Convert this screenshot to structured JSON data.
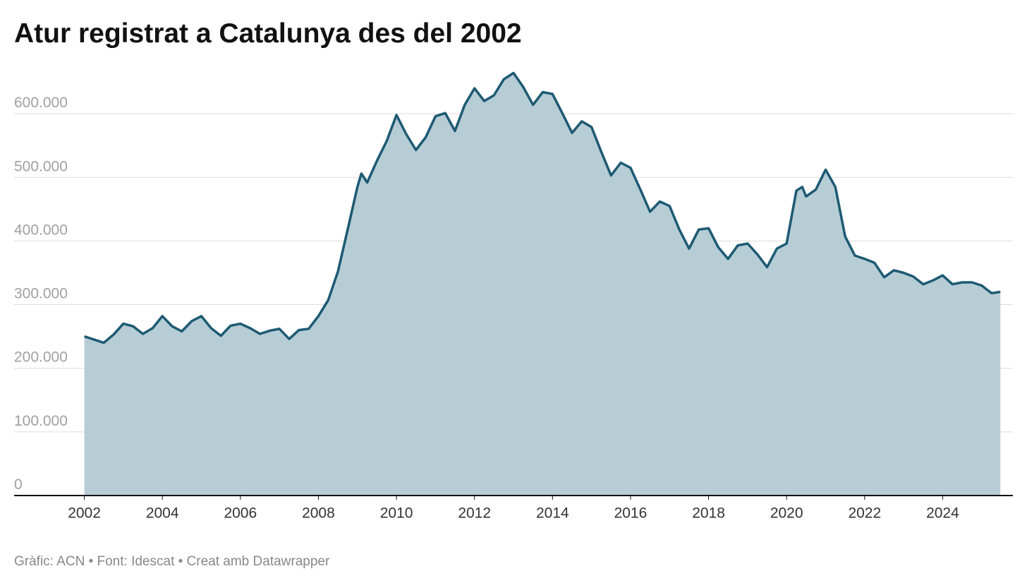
{
  "chart_data": {
    "type": "area",
    "title": "Atur registrat a Catalunya des del 2002",
    "source": "Gràfic: ACN • Font: Idescat • Creat amb Datawrapper",
    "color": "#1d5a73",
    "fill_color": "#b7cdd5",
    "x": [
      2002,
      2002.25,
      2002.5,
      2002.75,
      2003,
      2003.25,
      2003.5,
      2003.75,
      2004,
      2004.25,
      2004.5,
      2004.75,
      2005,
      2005.25,
      2005.5,
      2005.75,
      2006,
      2006.25,
      2006.5,
      2006.75,
      2007,
      2007.25,
      2007.5,
      2007.75,
      2008,
      2008.25,
      2008.5,
      2008.75,
      2009,
      2009.1,
      2009.25,
      2009.5,
      2009.75,
      2010,
      2010.25,
      2010.5,
      2010.75,
      2011,
      2011.25,
      2011.5,
      2011.75,
      2012,
      2012.25,
      2012.5,
      2012.75,
      2013,
      2013.25,
      2013.5,
      2013.75,
      2014,
      2014.25,
      2014.5,
      2014.75,
      2015,
      2015.25,
      2015.5,
      2015.75,
      2016,
      2016.25,
      2016.5,
      2016.75,
      2017,
      2017.25,
      2017.5,
      2017.75,
      2018,
      2018.25,
      2018.5,
      2018.75,
      2019,
      2019.25,
      2019.5,
      2019.75,
      2020,
      2020.25,
      2020.4,
      2020.5,
      2020.75,
      2021,
      2021.25,
      2021.5,
      2021.75,
      2022,
      2022.25,
      2022.5,
      2022.75,
      2023,
      2023.25,
      2023.5,
      2023.75,
      2024,
      2024.25,
      2024.5,
      2024.75,
      2025,
      2025.25,
      2025.48
    ],
    "values": [
      250000,
      245000,
      240000,
      253000,
      270000,
      266000,
      254000,
      263000,
      282000,
      266000,
      258000,
      274000,
      282000,
      263000,
      251000,
      267000,
      270000,
      263000,
      254000,
      259000,
      262000,
      246000,
      260000,
      262000,
      282000,
      307000,
      352000,
      418000,
      485000,
      506000,
      492000,
      526000,
      557000,
      598000,
      568000,
      543000,
      563000,
      596000,
      601000,
      573000,
      614000,
      640000,
      620000,
      629000,
      654000,
      664000,
      642000,
      614000,
      634000,
      631000,
      601000,
      570000,
      588000,
      579000,
      540000,
      503000,
      523000,
      515000,
      481000,
      446000,
      462000,
      455000,
      418000,
      388000,
      418000,
      420000,
      390000,
      372000,
      393000,
      396000,
      379000,
      359000,
      388000,
      396000,
      479000,
      485000,
      470000,
      481000,
      512000,
      485000,
      407000,
      377000,
      372000,
      366000,
      343000,
      354000,
      350000,
      344000,
      332000,
      338000,
      346000,
      332000,
      335000,
      335000,
      330000,
      318000,
      320000
    ],
    "xlim": [
      2000.2,
      2025.8
    ],
    "xticks": [
      2002,
      2004,
      2006,
      2008,
      2010,
      2012,
      2014,
      2016,
      2018,
      2020,
      2022,
      2024
    ],
    "ylim": [
      0,
      680000
    ],
    "yticks": [
      0,
      {
        "value": 100000,
        "label": "100.000"
      },
      {
        "value": 200000,
        "label": "200.000"
      },
      {
        "value": 300000,
        "label": "300.000"
      },
      {
        "value": 400000,
        "label": "400.000"
      },
      {
        "value": 500000,
        "label": "500.000"
      },
      {
        "value": 600000,
        "label": "600.000"
      }
    ],
    "grid": true
  }
}
